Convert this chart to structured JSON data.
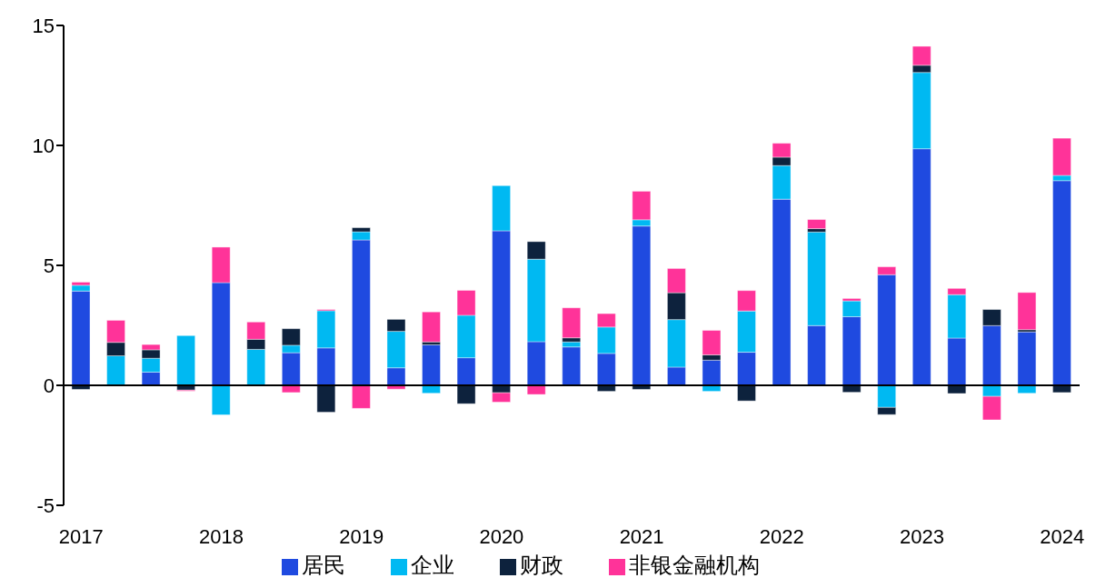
{
  "chart_data": {
    "type": "bar",
    "stacked": true,
    "categories": [
      "2017",
      null,
      null,
      null,
      "2018",
      null,
      null,
      null,
      "2019",
      null,
      null,
      null,
      "2020",
      null,
      null,
      null,
      "2021",
      null,
      null,
      null,
      "2022",
      null,
      null,
      null,
      "2023",
      null,
      null,
      null,
      "2024"
    ],
    "series": [
      {
        "name": "居民",
        "color": "#1f4ae0",
        "values": [
          3.93,
          null,
          0.55,
          null,
          4.28,
          null,
          1.36,
          1.56,
          6.06,
          0.73,
          1.69,
          1.15,
          6.44,
          1.82,
          1.6,
          1.33,
          6.64,
          0.76,
          1.05,
          1.38,
          7.76,
          2.49,
          2.86,
          4.61,
          9.86,
          1.97,
          2.49,
          2.23,
          8.53
        ]
      },
      {
        "name": "企业",
        "color": "#00b9f2",
        "values": [
          0.24,
          1.23,
          0.58,
          2.07,
          -1.23,
          1.5,
          0.31,
          1.55,
          0.34,
          1.52,
          -0.33,
          1.77,
          1.88,
          3.44,
          0.21,
          1.1,
          0.26,
          1.98,
          -0.25,
          1.72,
          1.4,
          3.9,
          0.66,
          -0.92,
          3.18,
          1.81,
          -0.46,
          -0.33,
          0.22
        ]
      },
      {
        "name": "财政",
        "color": "#0d223d",
        "values": [
          -0.17,
          0.56,
          0.35,
          -0.2,
          null,
          0.42,
          0.69,
          -1.12,
          0.17,
          0.5,
          0.12,
          -0.77,
          -0.31,
          0.73,
          0.17,
          -0.25,
          -0.17,
          1.12,
          0.22,
          -0.65,
          0.35,
          0.14,
          -0.29,
          -0.3,
          0.3,
          -0.34,
          0.67,
          0.09,
          -0.3
        ]
      },
      {
        "name": "非银金融机构",
        "color": "#ff3399",
        "values": [
          0.13,
          0.92,
          0.22,
          -0.04,
          1.48,
          0.72,
          -0.3,
          0.05,
          -0.96,
          -0.16,
          1.25,
          1.04,
          -0.39,
          -0.38,
          1.25,
          0.56,
          1.19,
          1.01,
          1.02,
          0.85,
          0.58,
          0.38,
          0.1,
          0.33,
          0.79,
          0.26,
          -0.98,
          1.55,
          1.55
        ]
      }
    ],
    "ylim": [
      -5,
      15
    ],
    "yticks": [
      -5,
      0,
      5,
      10,
      15
    ],
    "legend": "bottom"
  }
}
